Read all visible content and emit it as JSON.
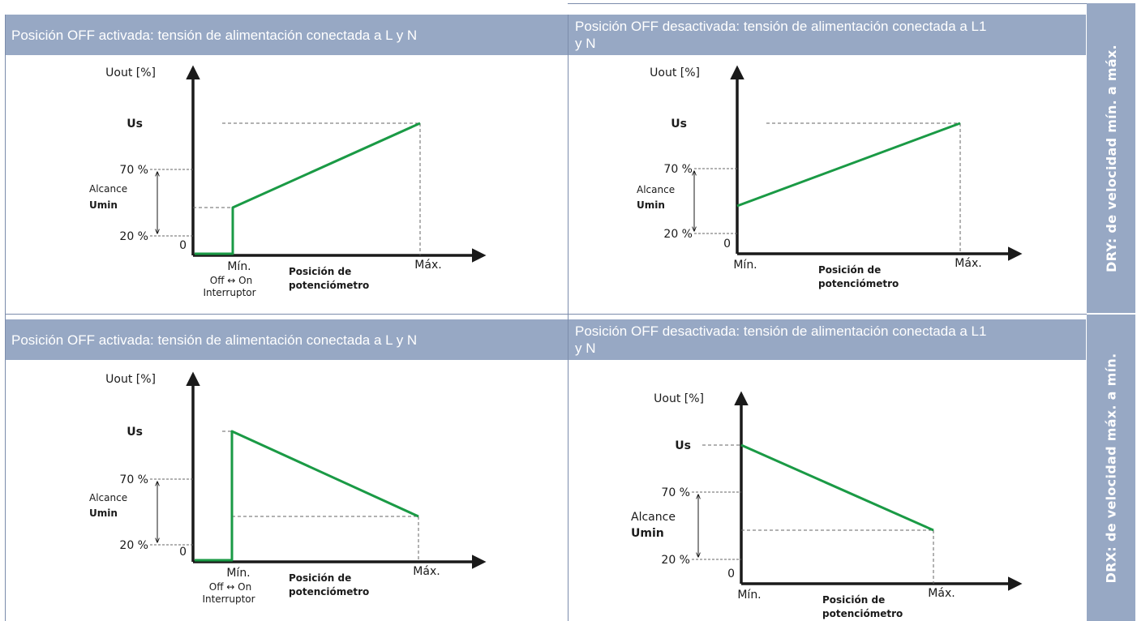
{
  "colors": {
    "header_bg": "#97a8c4",
    "header_text": "#ffffff",
    "curve": "#1a9a45",
    "axis": "#1a1a1a",
    "grid_dash": "#666666",
    "border": "#7b8cab"
  },
  "side_labels": {
    "top": "DRY: de velocidad mín. a máx.",
    "bottom": "DRX: de velocidad máx. a mín."
  },
  "panels": [
    {
      "header": "Posición OFF activada: tensión de alimentación conectada a L y N",
      "y_axis_label": "Uout [%]",
      "us_label": "Us",
      "pct70": "70 %",
      "pct20": "20 %",
      "zero": "0",
      "range_label": "Alcance",
      "umin_label": "Umin",
      "min_label": "Mín.",
      "max_label": "Máx.",
      "x_label_1": "Posición de",
      "x_label_2": "potenciómetro",
      "switch_label": "Off ↔ On",
      "switch_name": "Interruptor",
      "chart_data": {
        "type": "line",
        "x": [
          "Mín.",
          "Máx."
        ],
        "y_ticks": [
          "0",
          "20 %",
          "70 %",
          "Us"
        ],
        "off_at_min": true,
        "trend": "increasing"
      }
    },
    {
      "header": "Posición OFF desactivada: tensión de alimentación conectada a L1 y N",
      "y_axis_label": "Uout [%]",
      "us_label": "Us",
      "pct70": "70 %",
      "pct20": "20 %",
      "zero": "0",
      "range_label": "Alcance",
      "umin_label": "Umin",
      "min_label": "Mín.",
      "max_label": "Máx.",
      "x_label_1": "Posición de",
      "x_label_2": "potenciómetro",
      "chart_data": {
        "type": "line",
        "x": [
          "Mín.",
          "Máx."
        ],
        "y_ticks": [
          "0",
          "20 %",
          "70 %",
          "Us"
        ],
        "off_at_min": false,
        "trend": "increasing"
      }
    },
    {
      "header": "Posición OFF activada: tensión de alimentación conectada a L y N",
      "y_axis_label": "Uout [%]",
      "us_label": "Us",
      "pct70": "70 %",
      "pct20": "20 %",
      "zero": "0",
      "range_label": "Alcance",
      "umin_label": "Umin",
      "min_label": "Mín.",
      "max_label": "Máx.",
      "x_label_1": "Posición de",
      "x_label_2": "potenciómetro",
      "switch_label": "Off ↔ On",
      "switch_name": "Interruptor",
      "chart_data": {
        "type": "line",
        "x": [
          "Mín.",
          "Máx."
        ],
        "y_ticks": [
          "0",
          "20 %",
          "70 %",
          "Us"
        ],
        "off_at_min": true,
        "trend": "decreasing"
      }
    },
    {
      "header": "Posición OFF desactivada: tensión de alimentación conectada a L1 y N",
      "y_axis_label": "Uout [%]",
      "us_label": "Us",
      "pct70": "70 %",
      "pct20": "20 %",
      "zero": "0",
      "range_label": "Alcance",
      "umin_label": "Umin",
      "min_label": "Mín.",
      "max_label": "Máx.",
      "x_label_1": "Posición de",
      "x_label_2": "potenciómetro",
      "chart_data": {
        "type": "line",
        "x": [
          "Mín.",
          "Máx."
        ],
        "y_ticks": [
          "0",
          "20 %",
          "70 %",
          "Us"
        ],
        "off_at_min": false,
        "trend": "decreasing"
      }
    }
  ]
}
